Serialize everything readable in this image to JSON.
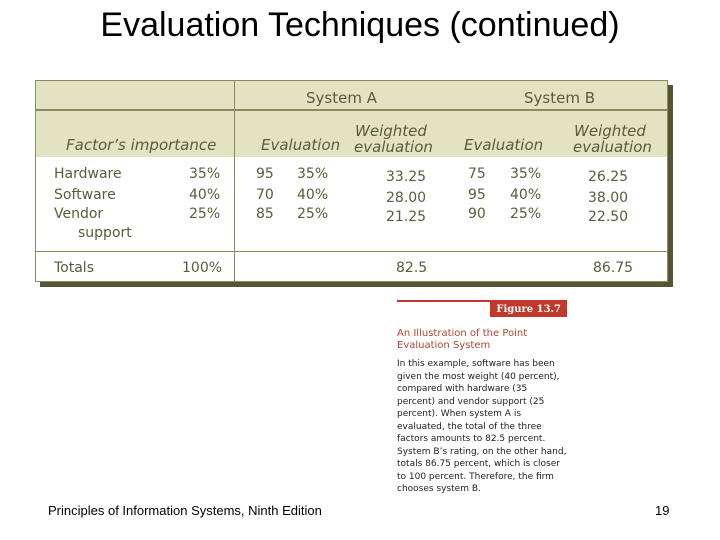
{
  "slide": {
    "title": "Evaluation Techniques (continued)",
    "footer": "Principles of Information Systems, Ninth Edition",
    "page_number": "19"
  },
  "table": {
    "system_a": "System A",
    "system_b": "System B",
    "col_factor": "Factor’s importance",
    "col_eval_a": "Evaluation",
    "col_weighted_a_1": "Weighted",
    "col_weighted_a_2": "evaluation",
    "col_eval_b": "Evaluation",
    "col_weighted_b_1": "Weighted",
    "col_weighted_b_2": "evaluation",
    "rows": [
      {
        "factor": "Hardware",
        "importance": "35%",
        "a_score": "95",
        "a_pct": "35%",
        "a_weighted": "33.25",
        "b_score": "75",
        "b_pct": "35%",
        "b_weighted": "26.25"
      },
      {
        "factor": "Software",
        "importance": "40%",
        "a_score": "70",
        "a_pct": "40%",
        "a_weighted": "28.00",
        "b_score": "95",
        "b_pct": "40%",
        "b_weighted": "38.00"
      },
      {
        "factor": "Vendor",
        "importance": "25%",
        "a_score": "85",
        "a_pct": "25%",
        "a_weighted": "21.25",
        "b_score": "90",
        "b_pct": "25%",
        "b_weighted": "22.50"
      }
    ],
    "vendor_line2": "support",
    "totals_label": "Totals",
    "totals_importance": "100%",
    "total_a": "82.5",
    "total_b": "86.75"
  },
  "caption": {
    "figure_label": "Figure 13.7",
    "title": "An Illustration of the Point Evaluation System",
    "body": "In this example, software has been given the most weight (40 percent), compared with hardware (35 percent) and vendor support (25 percent). When system A is evaluated, the total of the three factors amounts to 82.5 percent. System B’s rating, on the other hand, totals 86.75 percent, which is closer to 100 percent. Therefore, the firm chooses system B."
  }
}
